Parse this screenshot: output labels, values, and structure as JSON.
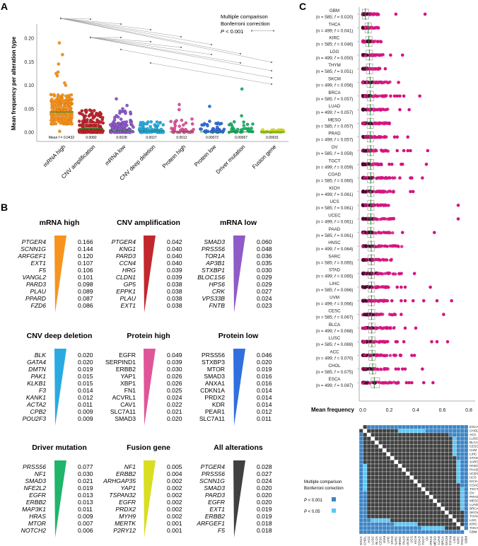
{
  "panels": {
    "a": "A",
    "b": "B",
    "c": "C"
  },
  "chart_data": [
    {
      "panel": "A",
      "type": "scatter",
      "ylabel": "Mean frequency per alteration type",
      "ylim": [
        0,
        0.2
      ],
      "yticks": [
        "0.00",
        "0.05",
        "0.10",
        "0.15",
        "0.20"
      ],
      "mean_prefix": "Mean f = ",
      "categories": [
        {
          "name": "mRNA high",
          "mean": "0.0432",
          "color": "#f7941d",
          "stroke": "#b8650a",
          "dense_max": 0.08,
          "outliers": [
            0.19,
            0.165,
            0.145,
            0.128,
            0.125,
            0.12,
            0.105,
            0.1,
            0.002
          ]
        },
        {
          "name": "CNV amplification",
          "mean": "0.0082",
          "color": "#c1272d",
          "stroke": "#6d1015",
          "dense_max": 0.048,
          "outliers": []
        },
        {
          "name": "mRNA low",
          "mean": "0.0028",
          "color": "#8e5bc7",
          "stroke": "#4f2d7a",
          "dense_max": 0.045,
          "outliers": [
            0.071,
            0.057,
            0.05
          ]
        },
        {
          "name": "CNV deep deletion",
          "mean": "0.0027",
          "color": "#29abe2",
          "stroke": "#166d94",
          "dense_max": 0.023,
          "outliers": []
        },
        {
          "name": "Protein high",
          "mean": "0.0012",
          "color": "#e0559a",
          "stroke": "#8e2a5c",
          "dense_max": 0.035,
          "outliers": [
            0.059,
            0.048
          ]
        },
        {
          "name": "Protein low",
          "mean": "0.00072",
          "color": "#2f6fe0",
          "stroke": "#173e85",
          "dense_max": 0.025,
          "outliers": [
            0.055
          ]
        },
        {
          "name": "Driver mutation",
          "mean": "0.00067",
          "color": "#1fb56a",
          "stroke": "#0e6b3c",
          "dense_max": 0.025,
          "outliers": [
            0.092,
            0.035
          ]
        },
        {
          "name": "Fusion gene",
          "mean": "0.00031",
          "color": "#d9de21",
          "stroke": "#8a8d0e",
          "dense_max": 0.005,
          "outliers": []
        }
      ],
      "significant_pairs": [
        [
          "mRNA high",
          "CNV amplification"
        ],
        [
          "mRNA high",
          "mRNA low"
        ],
        [
          "mRNA high",
          "CNV deep deletion"
        ],
        [
          "mRNA high",
          "Protein high"
        ],
        [
          "mRNA high",
          "Protein low"
        ],
        [
          "mRNA high",
          "Driver mutation"
        ],
        [
          "mRNA high",
          "Fusion gene"
        ],
        [
          "CNV amplification",
          "mRNA low"
        ],
        [
          "CNV amplification",
          "CNV deep deletion"
        ],
        [
          "CNV amplification",
          "Protein high"
        ],
        [
          "CNV amplification",
          "Protein low"
        ],
        [
          "CNV amplification",
          "Driver mutation"
        ],
        [
          "CNV amplification",
          "Fusion gene"
        ],
        [
          "mRNA low",
          "Fusion gene"
        ],
        [
          "CNV deep deletion",
          "Fusion gene"
        ]
      ],
      "legend": {
        "line1": "Multiple comparison",
        "line2": "Bonferroni correction",
        "p": "P",
        "threshold": " < 0.001"
      }
    },
    {
      "panel": "B",
      "type": "table",
      "tables": [
        {
          "title": "mRNA high",
          "color": "#f7941d",
          "italic": true,
          "genes": [
            "PTGER4",
            "SCNN1G",
            "ARFGEF1",
            "EXT1",
            "F5",
            "VANGL2",
            "PARD3",
            "PLAU",
            "PPARD",
            "FZD6"
          ],
          "values": [
            "0.166",
            "0.144",
            "0.120",
            "0.107",
            "0.106",
            "0.101",
            "0.098",
            "0.089",
            "0.087",
            "0.086"
          ]
        },
        {
          "title": "CNV amplification",
          "color": "#c1272d",
          "italic": true,
          "genes": [
            "PTGER4",
            "KNG1",
            "PARD3",
            "CCN4",
            "HRG",
            "CLDN1",
            "GP5",
            "EPPK1",
            "PLAU",
            "EXT1"
          ],
          "values": [
            "0.042",
            "0.040",
            "0.040",
            "0.040",
            "0.039",
            "0.039",
            "0.038",
            "0.038",
            "0.038",
            "0.038"
          ]
        },
        {
          "title": "mRNA low",
          "color": "#8e5bc7",
          "italic": true,
          "genes": [
            "SMAD3",
            "PRSS56",
            "TOR1A",
            "AP3B1",
            "STXBP1",
            "BLOC1S6",
            "HPS6",
            "CRK",
            "VPS33B",
            "FNTB"
          ],
          "values": [
            "0.060",
            "0.048",
            "0.036",
            "0.035",
            "0.030",
            "0.029",
            "0.029",
            "0.027",
            "0.024",
            "0.023"
          ]
        },
        {
          "title": "CNV deep deletion",
          "color": "#29abe2",
          "italic": true,
          "genes": [
            "BLK",
            "GATA4",
            "DMTN",
            "PAK1",
            "KLKB1",
            "F3",
            "KANK1",
            "ACTA2",
            "CPB2",
            "POU2F3"
          ],
          "values": [
            "0.020",
            "0.020",
            "0.019",
            "0.015",
            "0.015",
            "0.014",
            "0.012",
            "0.011",
            "0.009",
            "0.009"
          ]
        },
        {
          "title": "Protein high",
          "color": "#e0559a",
          "italic": false,
          "genes": [
            "EGFR",
            "SERPIND1",
            "ERBB2",
            "YAP1",
            "XBP1",
            "FN1",
            "ACVRL1",
            "CAV1",
            "SLC7A11",
            "SMAD3"
          ],
          "values": [
            "0.049",
            "0.039",
            "0.030",
            "0.026",
            "0.026",
            "0.025",
            "0.024",
            "0.022",
            "0.021",
            "0.020"
          ]
        },
        {
          "title": "Protein low",
          "color": "#2f6fe0",
          "italic": false,
          "genes": [
            "PRSS56",
            "STXBP3",
            "MTOR",
            "SMAD3",
            "ANXA1",
            "CDKN1A",
            "PRDX2",
            "KDR",
            "PEAR1",
            "SLC7A11"
          ],
          "values": [
            "0.046",
            "0.020",
            "0.019",
            "0.016",
            "0.016",
            "0.014",
            "0.014",
            "0.014",
            "0.012",
            "0.011"
          ]
        },
        {
          "title": "Driver mutation",
          "color": "#1fb56a",
          "italic": true,
          "genes": [
            "PRSS56",
            "NF1",
            "SMAD3",
            "NFE2L2",
            "EGFR",
            "ERBB2",
            "MAP3K1",
            "HRAS",
            "MTOR",
            "NOTCH2"
          ],
          "values": [
            "0.077",
            "0.030",
            "0.021",
            "0.019",
            "0.013",
            "0.013",
            "0.011",
            "0.009",
            "0.007",
            "0.006"
          ]
        },
        {
          "title": "Fusion gene",
          "color": "#d9de21",
          "italic": true,
          "genes": [
            "NF1",
            "ERBB2",
            "ARHGAP35",
            "YAP1",
            "TSPAN32",
            "EGFR",
            "PRDX2",
            "MYH9",
            "MERTK",
            "P2RY12"
          ],
          "values": [
            "0.005",
            "0.004",
            "0.002",
            "0.002",
            "0.002",
            "0.002",
            "0.002",
            "0.002",
            "0.001",
            "0.001"
          ]
        },
        {
          "title": "All alterations",
          "color": "#404040",
          "italic": true,
          "genes": [
            "PTGER4",
            "PRSS56",
            "SCNN1G",
            "SMAD3",
            "PARD3",
            "EGFR",
            "EXT1",
            "ERBB2",
            "ARFGEF1",
            "F5"
          ],
          "values": [
            "0.028",
            "0.027",
            "0.024",
            "0.020",
            "0.020",
            "0.020",
            "0.019",
            "0.019",
            "0.018",
            "0.018"
          ]
        }
      ]
    },
    {
      "panel": "C",
      "type": "scatter",
      "xlabel": "Mean frequency",
      "xlim": [
        0,
        0.8
      ],
      "xticks": [
        "0.0",
        "0.2",
        "0.4",
        "0.6",
        "0.8"
      ],
      "point_color": "#d4157f",
      "cancers": [
        {
          "name": "GBM",
          "n": "585",
          "f": "0.020",
          "dense_max": 0.12,
          "outliers": [
            0.25,
            0.47
          ]
        },
        {
          "name": "THCA",
          "n": "499",
          "f": "0.041",
          "dense_max": 0.12,
          "outliers": []
        },
        {
          "name": "KIRC",
          "n": "585",
          "f": "0.046",
          "dense_max": 0.18,
          "outliers": []
        },
        {
          "name": "LGG",
          "n": "499",
          "f": "0.050",
          "dense_max": 0.16,
          "outliers": [
            0.21,
            0.3
          ]
        },
        {
          "name": "THYM",
          "n": "585",
          "f": "0.051",
          "dense_max": 0.14,
          "outliers": [
            0.17
          ]
        },
        {
          "name": "SKCM",
          "n": "499",
          "f": "0.056",
          "dense_max": 0.21,
          "outliers": [
            0.27
          ]
        },
        {
          "name": "BRCA",
          "n": "585",
          "f": "0.057",
          "dense_max": 0.18,
          "outliers": [
            0.21,
            0.24,
            0.26,
            0.28,
            0.31,
            0.43
          ]
        },
        {
          "name": "LUAD",
          "n": "499",
          "f": "0.057",
          "dense_max": 0.2,
          "outliers": [
            0.28,
            0.35
          ]
        },
        {
          "name": "MESO",
          "n": "585",
          "f": "0.057",
          "dense_max": 0.21,
          "outliers": []
        },
        {
          "name": "PRAD",
          "n": "499",
          "f": "0.057",
          "dense_max": 0.19,
          "outliers": [
            0.24,
            0.26,
            0.34
          ]
        },
        {
          "name": "OV",
          "n": "585",
          "f": "0.059",
          "dense_max": 0.2,
          "outliers": [
            0.26,
            0.31,
            0.34,
            0.36,
            0.49
          ]
        },
        {
          "name": "TGCT",
          "n": "499",
          "f": "0.059",
          "dense_max": 0.15,
          "outliers": [
            0.2,
            0.22,
            0.29,
            0.3,
            0.48
          ]
        },
        {
          "name": "COAD",
          "n": "585",
          "f": "0.060",
          "dense_max": 0.25,
          "outliers": [
            0.28,
            0.36,
            0.37,
            0.45
          ]
        },
        {
          "name": "KICH",
          "n": "499",
          "f": "0.061",
          "dense_max": 0.24,
          "outliers": [
            0.36,
            0.38
          ]
        },
        {
          "name": "UCS",
          "n": "585",
          "f": "0.061",
          "dense_max": 0.24,
          "outliers": [
            0.72
          ]
        },
        {
          "name": "UCEC",
          "n": "499",
          "f": "0.061",
          "dense_max": 0.24,
          "outliers": [
            0.72
          ]
        },
        {
          "name": "PAAD",
          "n": "585",
          "f": "0.061",
          "dense_max": 0.24,
          "outliers": [
            0.3,
            0.54
          ]
        },
        {
          "name": "HNSC",
          "n": "499",
          "f": "0.064",
          "dense_max": 0.3,
          "outliers": []
        },
        {
          "name": "SARC",
          "n": "585",
          "f": "0.065",
          "dense_max": 0.22,
          "outliers": []
        },
        {
          "name": "STAD",
          "n": "499",
          "f": "0.065",
          "dense_max": 0.3,
          "outliers": [
            0.39
          ]
        },
        {
          "name": "LIHC",
          "n": "585",
          "f": "0.066",
          "dense_max": 0.2,
          "outliers": [
            0.26,
            0.29,
            0.32,
            0.51
          ]
        },
        {
          "name": "UVM",
          "n": "499",
          "f": "0.066",
          "dense_max": 0.19,
          "outliers": [
            0.22,
            0.29,
            0.32,
            0.38,
            0.46,
            0.56,
            0.67
          ]
        },
        {
          "name": "CESC",
          "n": "585",
          "f": "0.067",
          "dense_max": 0.25,
          "outliers": [
            0.29,
            0.61
          ]
        },
        {
          "name": "BLCA",
          "n": "499",
          "f": "0.068",
          "dense_max": 0.24,
          "outliers": [
            0.32,
            0.4
          ]
        },
        {
          "name": "LUSC",
          "n": "585",
          "f": "0.069",
          "dense_max": 0.19,
          "outliers": [
            0.25,
            0.26,
            0.31,
            0.52,
            0.56,
            0.64
          ]
        },
        {
          "name": "ACC",
          "n": "499",
          "f": "0.070",
          "dense_max": 0.3,
          "outliers": [
            0.37,
            0.39
          ]
        },
        {
          "name": "CHOL",
          "n": "585",
          "f": "0.075",
          "dense_max": 0.2,
          "outliers": [
            0.25,
            0.27,
            0.3,
            0.32,
            0.45
          ]
        },
        {
          "name": "ESCA",
          "n": "499",
          "f": "0.087",
          "dense_max": 0.27,
          "outliers": [
            0.33,
            0.35,
            0.37,
            0.46,
            0.53
          ]
        }
      ]
    },
    {
      "panel": "C-heatmap",
      "type": "heatmap",
      "order": [
        "ESCA",
        "CHOL",
        "ACC",
        "LUSC",
        "BLCA",
        "CESC",
        "UVM",
        "LIHC",
        "STAD",
        "SARC",
        "HNSC",
        "PAAD",
        "UCEC",
        "UCS",
        "KICH",
        "COAD",
        "TGCT",
        "OV",
        "PRAD",
        "MESO",
        "LUAD",
        "BRCA",
        "SKCM",
        "THYM",
        "LGG",
        "KIRC",
        "THCA",
        "GBM"
      ],
      "legend_key": {
        "B": "P < 0.001",
        "L": "P < 0.05",
        "D": "not significant",
        "W": "self"
      },
      "colors": {
        "B": "#3d85c6",
        "L": "#5bc8f5",
        "D": "#404040",
        "W": "#ffffff"
      },
      "matrix": [
        "WDBBBBBBBBBBBBBBBBBBBBBBBBBB",
        "DWDDDDDDDDLLLLLLLBBBBBBBBBBB",
        "BDWDDDDDDDDDDDDDDDDDDDDBBBBB",
        "BDDWDDDDDDDDDDDDDDDDDDDDLBBB",
        "BDDDWDDDDDDDDDDDDDDDDDDDLBBB",
        "BDDDDWDDDDDDDDDDDDDDDDDDLBBB",
        "BDDDDDWDDDDDDDDDDDDDDDDDLBBB",
        "BDDDDDDWDDDDDDDDDDDDDDDDLBBB",
        "BDDDDDDDWDDDDDDDDDDDDDDDDBBB",
        "BDDDDDDDDWDDDDDDDDDDDDDDDLBB",
        "BLDDDDDDDDWDDDDDDDDDDDDDDLBB",
        "BLDDDDDDDDDWDDDDDDDDDDDDDLBB",
        "BLDDDDDDDDDDWDDDDDDDDDDDDLBB",
        "BLDDDDDDDDDDDWDDDDDDDDDDDLBB",
        "BLDDDDDDDDDDDDWDDDDDDDDDDLBB",
        "BLDDDDDDDDDDDDDWDDDDDDDDDDBB",
        "BLDDDDDDDDDDDDDDWDDDDDDDDDLB",
        "BBDDDDDDDDDDDDDDDWDDDDDDDDLB",
        "BBDDDDDDDDDDDDDDDDWDDDDDDDLB",
        "BBDDDDDDDDDDDDDDDDDWDDDDDDLB",
        "BBDDDDDDDDDDDDDDDDDDWDDDDDLB",
        "BBDDDDDDDDDDDDDDDDDDDWDDDDLB",
        "BBDDDDDDDDDDDDDDDDDDDDWDDDDB",
        "BBDDDDDDDDDDDDDDDDDDDDDWDDDB",
        "BBBLLLLLDDDDDDDDDDDDDDDDWDDB",
        "BBBBBBBBBLLLLLLDDDDDDDDDDWDB",
        "BBBBBBBBBBBBBBBBLLLLLLDDDDWB",
        "BBBBBBBBBBBBBBBBBBBBBBBBBBBW"
      ],
      "legend": {
        "line1": "Multiple comparison",
        "line2": "Bonferroni correction",
        "p": "P",
        "b_label": " < 0.001",
        "l_label": " < 0.05"
      }
    }
  ]
}
